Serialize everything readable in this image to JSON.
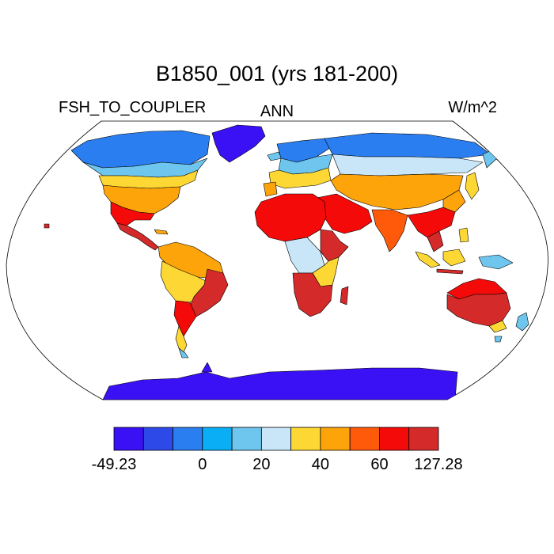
{
  "title": "B1850_001 (yrs 181-200)",
  "subtitle_left": "FSH_TO_COUPLER",
  "subtitle_center": "ANN",
  "subtitle_right": "W/m^2",
  "colorbar": {
    "colors": [
      "#3a10f5",
      "#2d4ae8",
      "#2b7ef0",
      "#0aaef5",
      "#6ec6ee",
      "#c8e6f8",
      "#fdd835",
      "#fca40a",
      "#ff5a0a",
      "#f50a0a",
      "#d42a2a"
    ],
    "labels": [
      "-49.23",
      "0",
      "20",
      "40",
      "60",
      "127.28"
    ]
  },
  "colors": {
    "ocean": "#ffffff",
    "coast": "#000000",
    "greenland": "#3a10f5",
    "antarctica": "#3a10f5"
  }
}
